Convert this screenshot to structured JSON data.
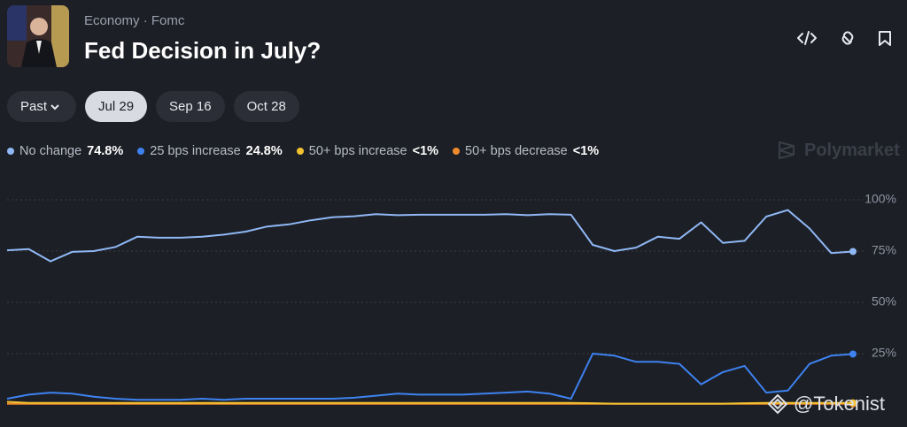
{
  "header": {
    "breadcrumb": [
      "Economy",
      "Fomc"
    ],
    "separator": "·",
    "title": "Fed Decision in July?"
  },
  "tabs": [
    {
      "label": "Past",
      "selected": false
    },
    {
      "label": "Jul 29",
      "selected": true
    },
    {
      "label": "Sep 16",
      "selected": false
    },
    {
      "label": "Oct 28",
      "selected": false
    }
  ],
  "brand": "Polymarket",
  "watermark": "@Tokenist",
  "chart_data": {
    "type": "line",
    "ylim": [
      0,
      100
    ],
    "yticks": [
      {
        "value": 100,
        "label": "100%"
      },
      {
        "value": 75,
        "label": "75%"
      },
      {
        "value": 50,
        "label": "50%"
      },
      {
        "value": 25,
        "label": "25%"
      }
    ],
    "grid": true,
    "series": [
      {
        "name": "No change",
        "legend_value": "74.8%",
        "color": "#8fb8f5",
        "values": [
          75.4,
          76,
          70,
          74.6,
          75,
          77,
          82,
          81.5,
          81.5,
          82,
          83,
          84.5,
          87,
          88,
          90,
          91.5,
          92,
          93,
          92.5,
          92.7,
          92.7,
          92.7,
          92.7,
          93,
          92.5,
          93,
          92.7,
          78,
          75,
          76.7,
          82,
          81,
          89,
          79,
          80,
          91.8,
          95,
          86,
          74,
          74.8
        ]
      },
      {
        "name": "25 bps increase",
        "legend_value": "24.8%",
        "color": "#3d82f0",
        "values": [
          3,
          5,
          6,
          5.5,
          4,
          3,
          2.5,
          2.5,
          2.5,
          3,
          2.5,
          3,
          3,
          3,
          3,
          3,
          3.5,
          4.5,
          5.5,
          5,
          5,
          5,
          5.5,
          6,
          6.5,
          5.5,
          3,
          25,
          24,
          21,
          21,
          20,
          10,
          16,
          19,
          6,
          7,
          20,
          24,
          24.8
        ]
      },
      {
        "name": "50+ bps increase",
        "legend_value": "<1%",
        "color": "#f2c230",
        "values": [
          1.5,
          1,
          1,
          1,
          1,
          1,
          1,
          1,
          1,
          1,
          1,
          1,
          1,
          1,
          1,
          1,
          1,
          1,
          1,
          1,
          1,
          1,
          1,
          1,
          1,
          1,
          1,
          0.8,
          0.6,
          0.6,
          0.6,
          0.6,
          0.6,
          0.6,
          0.8,
          1,
          1,
          1,
          1,
          1
        ]
      },
      {
        "name": "50+ bps decrease",
        "legend_value": "<1%",
        "color": "#ef8a2c",
        "values": [
          0.5,
          0.5,
          0.5,
          0.5,
          0.5,
          0.5,
          0.5,
          0.5,
          0.5,
          0.5,
          0.5,
          0.5,
          0.5,
          0.5,
          0.5,
          0.5,
          0.5,
          0.5,
          0.5,
          0.5,
          0.5,
          0.5,
          0.5,
          0.5,
          0.5,
          0.5,
          0.5,
          0.5,
          0.5,
          0.5,
          0.5,
          0.5,
          0.5,
          0.5,
          0.5,
          0.5,
          0.5,
          0.5,
          0.5,
          0.5
        ]
      }
    ]
  }
}
